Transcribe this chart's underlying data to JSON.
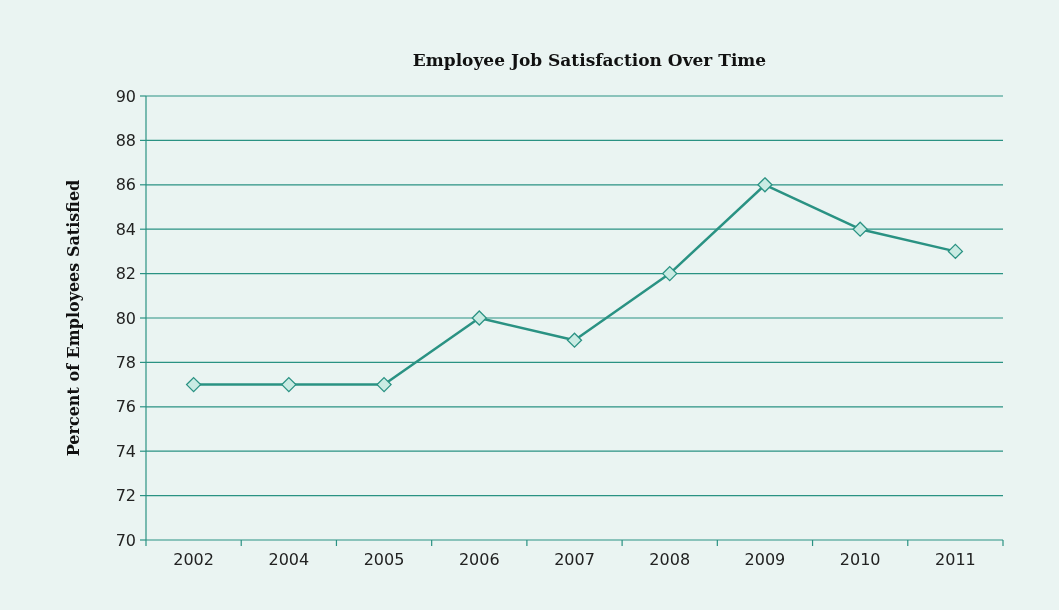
{
  "chart_data": {
    "type": "line",
    "title": "Employee Job Satisfaction Over Time",
    "ylabel": "Percent of Employees Satisfied",
    "categories": [
      "2002",
      "2004",
      "2005",
      "2006",
      "2007",
      "2008",
      "2009",
      "2010",
      "2011"
    ],
    "series": [
      {
        "color": "#2a9283",
        "values": [
          77,
          77,
          77,
          80,
          79,
          82,
          86,
          84,
          83
        ]
      }
    ],
    "ylim": [
      70,
      90
    ],
    "yticks": [
      70,
      72,
      74,
      76,
      78,
      80,
      82,
      84,
      86,
      88,
      90
    ],
    "grid": "y",
    "marker": "diamond",
    "line_style": "solid"
  }
}
